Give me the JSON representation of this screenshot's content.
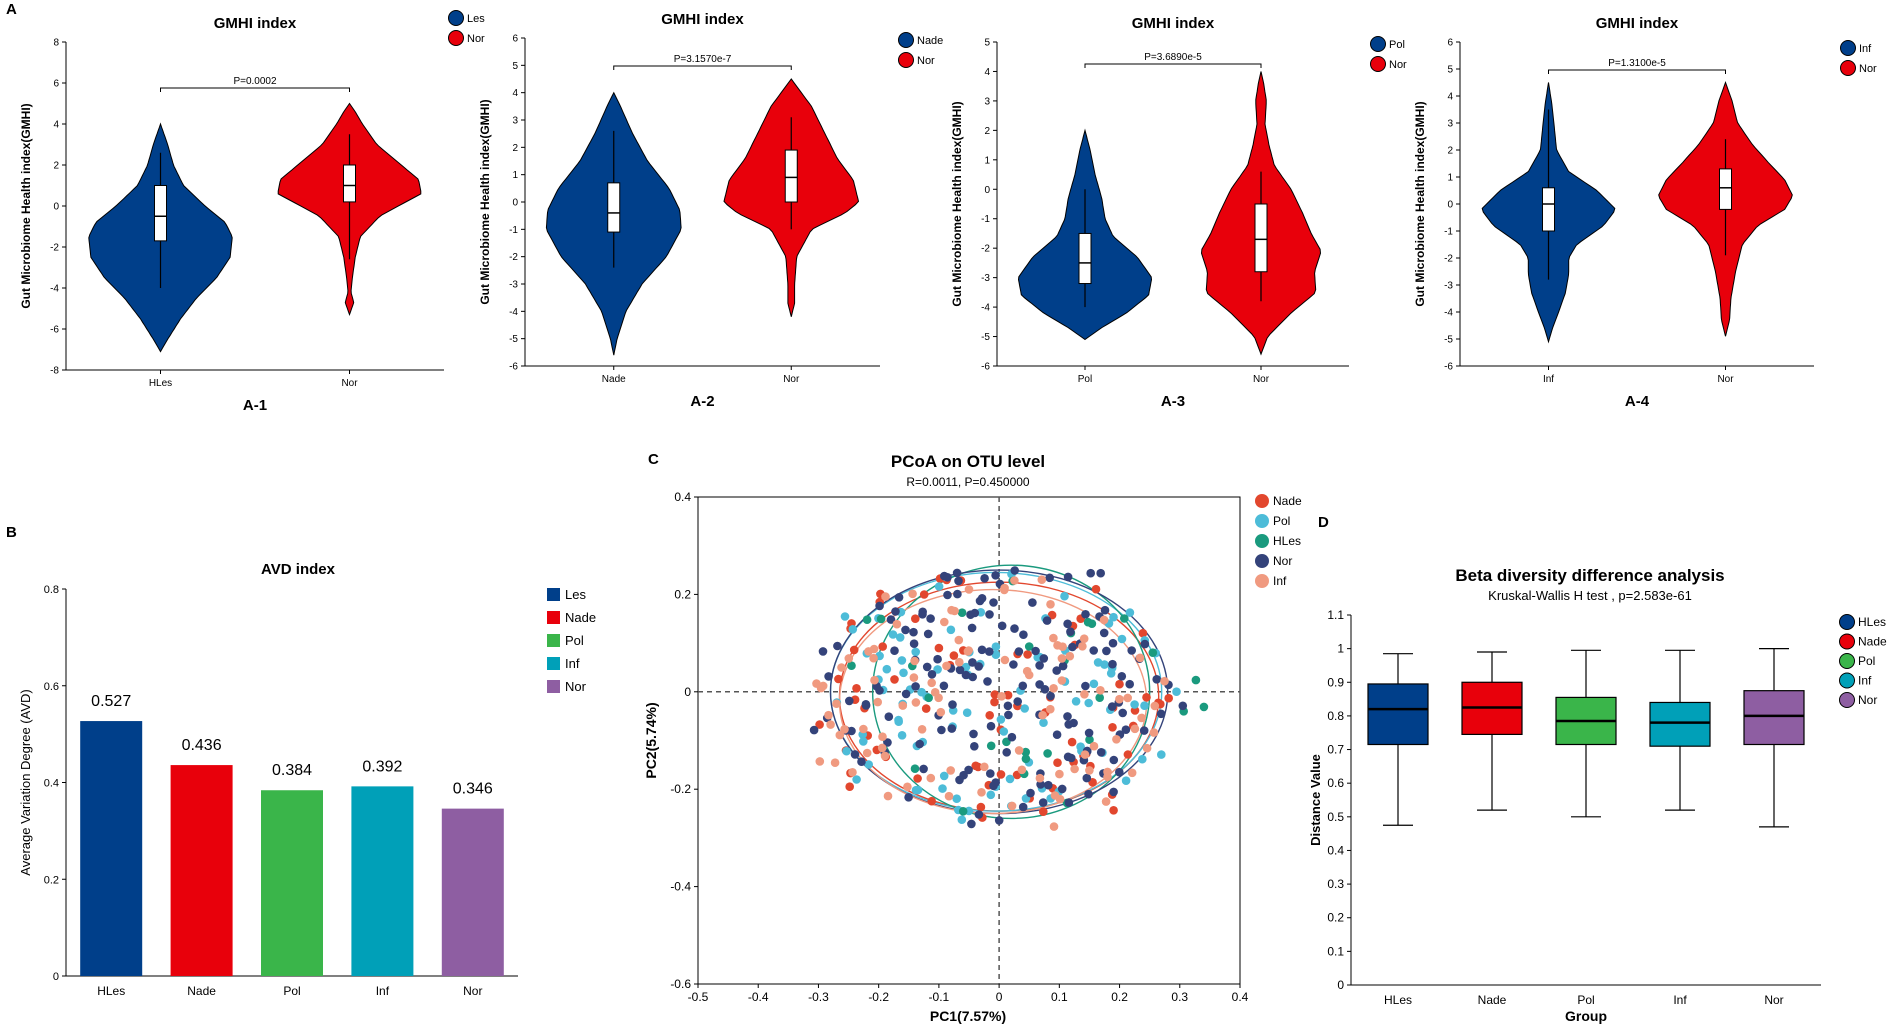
{
  "panel_labels": {
    "a": "A",
    "b": "B",
    "c": "C",
    "d": "D"
  },
  "colors": {
    "blue": "#003f8a",
    "red": "#e8000b",
    "green": "#3ab54a",
    "teal": "#00a0b8",
    "purple": "#8e5ea2",
    "pcoa_nade": "#e2472e",
    "pcoa_pol": "#4dbcd8",
    "pcoa_hles": "#1a9a7e",
    "pcoa_nor": "#34437a",
    "pcoa_inf": "#f09a80"
  },
  "chart_data": [
    {
      "type": "violin",
      "id": "a1",
      "title": "GMHI index",
      "sublabel": "A-1",
      "ylabel": "Gut Microbiome Health index(GMHI)",
      "ylim": [
        -8,
        8
      ],
      "yticks": [
        -8,
        -6,
        -4,
        -2,
        0,
        2,
        4,
        6,
        8
      ],
      "categories": [
        "HLes",
        "Nor"
      ],
      "legend": [
        "Les",
        "Nor"
      ],
      "pvalue": "P=0.0002",
      "groups": [
        {
          "name": "HLes",
          "min": -7.1,
          "max": 4.0,
          "q1": -1.7,
          "median": -0.5,
          "q3": 1.0,
          "wlo": -4.0,
          "whi": 2.6,
          "density": [
            [
              -7.1,
              0
            ],
            [
              -6.5,
              0.1
            ],
            [
              -5.5,
              0.28
            ],
            [
              -4.5,
              0.5
            ],
            [
              -3.5,
              0.78
            ],
            [
              -2.5,
              0.97
            ],
            [
              -1.5,
              1.0
            ],
            [
              -0.8,
              0.9
            ],
            [
              0,
              0.62
            ],
            [
              1,
              0.32
            ],
            [
              2,
              0.18
            ],
            [
              3,
              0.1
            ],
            [
              4,
              0
            ]
          ]
        },
        {
          "name": "Nor",
          "min": -5.3,
          "max": 5.0,
          "q1": 0.2,
          "median": 1.0,
          "q3": 2.0,
          "wlo": -2.6,
          "whi": 3.5,
          "density": [
            [
              -5.3,
              0
            ],
            [
              -4.7,
              0.06
            ],
            [
              -4.2,
              0.02
            ],
            [
              -3.5,
              0.04
            ],
            [
              -2.5,
              0.08
            ],
            [
              -1.5,
              0.15
            ],
            [
              -0.5,
              0.42
            ],
            [
              0,
              0.68
            ],
            [
              0.6,
              1.0
            ],
            [
              1.3,
              0.96
            ],
            [
              2,
              0.72
            ],
            [
              3,
              0.38
            ],
            [
              4,
              0.18
            ],
            [
              4.6,
              0.08
            ],
            [
              5,
              0
            ]
          ]
        }
      ]
    },
    {
      "type": "violin",
      "id": "a2",
      "title": "GMHI index",
      "sublabel": "A-2",
      "ylabel": "Gut Microbiome Health index(GMHI)",
      "ylim": [
        -6,
        6
      ],
      "yticks": [
        -6,
        -5,
        -4,
        -3,
        -2,
        -1,
        0,
        1,
        2,
        3,
        4,
        5,
        6
      ],
      "categories": [
        "Nade",
        "Nor"
      ],
      "legend": [
        "Nade",
        "Nor"
      ],
      "pvalue": "P=3.1570e-7",
      "groups": [
        {
          "name": "Nade",
          "min": -5.6,
          "max": 4.0,
          "q1": -1.1,
          "median": -0.4,
          "q3": 0.7,
          "wlo": -2.4,
          "whi": 2.6,
          "density": [
            [
              -5.6,
              0
            ],
            [
              -5,
              0.05
            ],
            [
              -4,
              0.18
            ],
            [
              -3,
              0.42
            ],
            [
              -2,
              0.78
            ],
            [
              -1,
              1.0
            ],
            [
              -0.3,
              0.98
            ],
            [
              0.5,
              0.82
            ],
            [
              1.5,
              0.5
            ],
            [
              2.5,
              0.28
            ],
            [
              3.5,
              0.1
            ],
            [
              4,
              0
            ]
          ]
        },
        {
          "name": "Nor",
          "min": -4.2,
          "max": 4.5,
          "q1": 0.0,
          "median": 0.9,
          "q3": 1.9,
          "wlo": -1.0,
          "whi": 3.1,
          "density": [
            [
              -4.2,
              0
            ],
            [
              -3.7,
              0.05
            ],
            [
              -3,
              0.05
            ],
            [
              -2,
              0.08
            ],
            [
              -1,
              0.3
            ],
            [
              -0.4,
              0.8
            ],
            [
              0,
              1.0
            ],
            [
              0.8,
              0.92
            ],
            [
              1.6,
              0.68
            ],
            [
              2.5,
              0.5
            ],
            [
              3.5,
              0.3
            ],
            [
              4.1,
              0.12
            ],
            [
              4.5,
              0
            ]
          ]
        }
      ]
    },
    {
      "type": "violin",
      "id": "a3",
      "title": "GMHI index",
      "sublabel": "A-3",
      "ylabel": "Gut Microbiome Health index(GMHI)",
      "ylim": [
        -6,
        5
      ],
      "yticks": [
        -6,
        -5,
        -4,
        -3,
        -2,
        -1,
        0,
        1,
        2,
        3,
        4,
        5
      ],
      "categories": [
        "Pol",
        "Nor"
      ],
      "legend": [
        "Pol",
        "Nor"
      ],
      "pvalue": "P=3.6890e-5",
      "groups": [
        {
          "name": "Pol",
          "min": -5.1,
          "max": 2.0,
          "q1": -3.2,
          "median": -2.5,
          "q3": -1.5,
          "wlo": -4.0,
          "whi": 0.0,
          "density": [
            [
              -5.1,
              0
            ],
            [
              -4.7,
              0.25
            ],
            [
              -4.2,
              0.62
            ],
            [
              -3.6,
              0.95
            ],
            [
              -3.0,
              1.0
            ],
            [
              -2.3,
              0.78
            ],
            [
              -1.6,
              0.42
            ],
            [
              -1.0,
              0.3
            ],
            [
              -0.3,
              0.25
            ],
            [
              0.5,
              0.15
            ],
            [
              1.3,
              0.08
            ],
            [
              2,
              0
            ]
          ]
        },
        {
          "name": "Nor",
          "min": -5.6,
          "max": 4.0,
          "q1": -2.8,
          "median": -1.7,
          "q3": -0.5,
          "wlo": -3.8,
          "whi": 0.6,
          "density": [
            [
              -5.6,
              0
            ],
            [
              -5,
              0.1
            ],
            [
              -4.2,
              0.45
            ],
            [
              -3.5,
              0.82
            ],
            [
              -2.8,
              0.8
            ],
            [
              -2.1,
              0.9
            ],
            [
              -1.5,
              0.75
            ],
            [
              -0.8,
              0.62
            ],
            [
              0,
              0.45
            ],
            [
              0.8,
              0.2
            ],
            [
              1.5,
              0.12
            ],
            [
              2.2,
              0.06
            ],
            [
              3.0,
              0.08
            ],
            [
              3.6,
              0.04
            ],
            [
              4,
              0
            ]
          ]
        }
      ]
    },
    {
      "type": "violin",
      "id": "a4",
      "title": "GMHI index",
      "sublabel": "A-4",
      "ylabel": "Gut Microbiome Health index(GMHI)",
      "ylim": [
        -6,
        6
      ],
      "yticks": [
        -6,
        -5,
        -4,
        -3,
        -2,
        -1,
        0,
        1,
        2,
        3,
        4,
        5,
        6
      ],
      "categories": [
        "Inf",
        "Nor"
      ],
      "legend": [
        "Inf",
        "Nor"
      ],
      "pvalue": "P=1.3100e-5",
      "groups": [
        {
          "name": "Inf",
          "min": -5.1,
          "max": 4.5,
          "q1": -1.0,
          "median": 0.0,
          "q3": 0.6,
          "wlo": -2.8,
          "whi": 3.5,
          "density": [
            [
              -5.1,
              0
            ],
            [
              -4.6,
              0.06
            ],
            [
              -4,
              0.15
            ],
            [
              -3.3,
              0.25
            ],
            [
              -2.6,
              0.3
            ],
            [
              -2,
              0.3
            ],
            [
              -1.5,
              0.42
            ],
            [
              -0.8,
              0.82
            ],
            [
              -0.2,
              1.0
            ],
            [
              0.5,
              0.72
            ],
            [
              1.2,
              0.3
            ],
            [
              2,
              0.12
            ],
            [
              3,
              0.08
            ],
            [
              3.7,
              0.05
            ],
            [
              4.5,
              0
            ]
          ]
        },
        {
          "name": "Nor",
          "min": -4.9,
          "max": 4.5,
          "q1": -0.2,
          "median": 0.6,
          "q3": 1.3,
          "wlo": -1.9,
          "whi": 2.4,
          "density": [
            [
              -4.9,
              0
            ],
            [
              -4.3,
              0.06
            ],
            [
              -3.5,
              0.08
            ],
            [
              -2.5,
              0.15
            ],
            [
              -1.5,
              0.25
            ],
            [
              -0.8,
              0.48
            ],
            [
              -0.2,
              0.88
            ],
            [
              0.3,
              1.0
            ],
            [
              0.9,
              0.88
            ],
            [
              1.5,
              0.65
            ],
            [
              2.2,
              0.4
            ],
            [
              3,
              0.18
            ],
            [
              3.8,
              0.1
            ],
            [
              4.5,
              0
            ]
          ]
        }
      ]
    },
    {
      "type": "bar",
      "id": "b",
      "title": "AVD index",
      "ylabel": "Average Variation Degree (AVD)",
      "categories": [
        "HLes",
        "Nade",
        "Pol",
        "Inf",
        "Nor"
      ],
      "values": [
        0.527,
        0.436,
        0.384,
        0.392,
        0.346
      ],
      "labels": [
        "0.527",
        "0.436",
        "0.384",
        "0.392",
        "0.346"
      ],
      "legend": [
        "Les",
        "Nade",
        "Pol",
        "Inf",
        "Nor"
      ],
      "ylim": [
        0,
        0.8
      ],
      "yticks": [
        0,
        0.2,
        0.4,
        0.6,
        0.8
      ]
    },
    {
      "type": "scatter",
      "id": "c",
      "title": "PCoA on OTU level",
      "subtitle": "R=0.0011, P=0.450000",
      "xlabel": "PC1(7.57%)",
      "ylabel": "PC2(5.74%)",
      "xlim": [
        -0.5,
        0.4
      ],
      "ylim": [
        -0.6,
        0.4
      ],
      "xticks": [
        -0.5,
        -0.4,
        -0.3,
        -0.2,
        -0.1,
        0,
        0.1,
        0.2,
        0.3,
        0.4
      ],
      "yticks": [
        -0.6,
        -0.4,
        -0.2,
        0,
        0.2,
        0.4
      ],
      "legend": [
        "Nade",
        "Pol",
        "HLes",
        "Nor",
        "Inf"
      ],
      "series": [
        {
          "name": "Nade",
          "n": 75,
          "seed": 11,
          "ellipse": {
            "cx": 0.0,
            "cy": -0.01,
            "rx": 0.265,
            "ry": 0.235
          }
        },
        {
          "name": "Pol",
          "n": 95,
          "seed": 23,
          "ellipse": {
            "cx": -0.005,
            "cy": 0.0,
            "rx": 0.275,
            "ry": 0.245
          }
        },
        {
          "name": "HLes",
          "n": 28,
          "seed": 37,
          "ellipse": {
            "cx": 0.02,
            "cy": 0.0,
            "rx": 0.23,
            "ry": 0.26
          }
        },
        {
          "name": "Nor",
          "n": 160,
          "seed": 41,
          "ellipse": {
            "cx": 0.0,
            "cy": 0.0,
            "rx": 0.28,
            "ry": 0.25
          }
        },
        {
          "name": "Inf",
          "n": 100,
          "seed": 53,
          "ellipse": {
            "cx": -0.01,
            "cy": -0.02,
            "rx": 0.255,
            "ry": 0.23
          }
        }
      ]
    },
    {
      "type": "box",
      "id": "d",
      "title": "Beta diversity difference analysis",
      "subtitle": "Kruskal-Wallis H test , p=2.583e-61",
      "xlabel": "Group",
      "ylabel": "Distance Value",
      "categories": [
        "HLes",
        "Nade",
        "Pol",
        "Inf",
        "Nor"
      ],
      "legend": [
        "HLes",
        "Nade",
        "Pol",
        "Inf",
        "Nor"
      ],
      "ylim": [
        0,
        1.1
      ],
      "yticks": [
        0,
        0.1,
        0.2,
        0.3,
        0.4,
        0.5,
        0.6,
        0.7,
        0.8,
        0.9,
        1,
        1.1
      ],
      "boxes": [
        {
          "min": 0.475,
          "q1": 0.715,
          "median": 0.82,
          "q3": 0.895,
          "max": 0.985
        },
        {
          "min": 0.52,
          "q1": 0.745,
          "median": 0.825,
          "q3": 0.9,
          "max": 0.99
        },
        {
          "min": 0.5,
          "q1": 0.715,
          "median": 0.785,
          "q3": 0.855,
          "max": 0.995
        },
        {
          "min": 0.52,
          "q1": 0.71,
          "median": 0.78,
          "q3": 0.84,
          "max": 0.995
        },
        {
          "min": 0.47,
          "q1": 0.715,
          "median": 0.8,
          "q3": 0.875,
          "max": 1.0
        }
      ]
    }
  ]
}
